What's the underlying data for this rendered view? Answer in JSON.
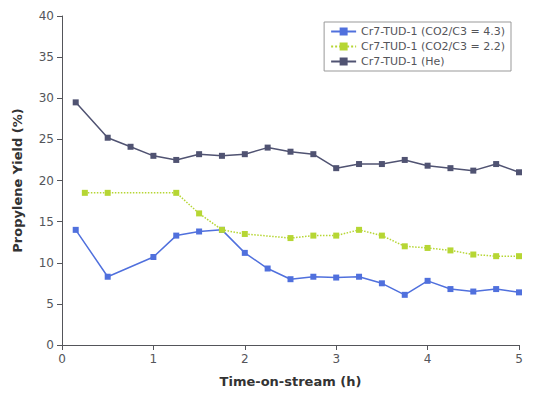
{
  "chart_data": {
    "type": "line",
    "xlabel": "Time-on-stream (h)",
    "ylabel": "Propylene Yield (%)",
    "xlim": [
      0,
      5
    ],
    "ylim": [
      0,
      40
    ],
    "xticks": [
      0,
      1,
      2,
      3,
      4,
      5
    ],
    "yticks": [
      0,
      5,
      10,
      15,
      20,
      25,
      30,
      35,
      40
    ],
    "grid": false,
    "legend": "upper right",
    "series": [
      {
        "name": "Cr7-TUD-1 (CO2/C3 = 4.3)",
        "line_style": "solid",
        "marker": "square",
        "x": [
          0.15,
          0.5,
          1.0,
          1.25,
          1.5,
          1.75,
          2.0,
          2.25,
          2.5,
          2.75,
          3.0,
          3.25,
          3.5,
          3.75,
          4.0,
          4.25,
          4.5,
          4.75,
          5.0
        ],
        "values": [
          14.0,
          8.3,
          10.7,
          13.3,
          13.8,
          14.0,
          11.2,
          9.3,
          8.0,
          8.3,
          8.2,
          8.3,
          7.5,
          6.1,
          7.8,
          6.8,
          6.5,
          6.8,
          6.4
        ]
      },
      {
        "name": "Cr7-TUD-1 (CO2/C3 = 2.2)",
        "line_style": "dotted",
        "marker": "square",
        "x": [
          0.25,
          0.5,
          1.25,
          1.5,
          1.75,
          2.0,
          2.5,
          2.75,
          3.0,
          3.25,
          3.5,
          3.75,
          4.0,
          4.25,
          4.5,
          4.75,
          5.0
        ],
        "values": [
          18.5,
          18.5,
          18.5,
          16.0,
          14.0,
          13.5,
          13.0,
          13.3,
          13.3,
          14.0,
          13.3,
          12.0,
          11.8,
          11.5,
          11.0,
          10.8,
          10.8
        ]
      },
      {
        "name": "Cr7-TUD-1 (He)",
        "line_style": "solid",
        "marker": "square",
        "x": [
          0.15,
          0.5,
          0.75,
          1.0,
          1.25,
          1.5,
          1.75,
          2.0,
          2.25,
          2.5,
          2.75,
          3.0,
          3.25,
          3.5,
          3.75,
          4.0,
          4.25,
          4.5,
          4.75,
          5.0
        ],
        "values": [
          29.5,
          25.2,
          24.1,
          23.0,
          22.5,
          23.2,
          23.0,
          23.2,
          24.0,
          23.5,
          23.2,
          21.5,
          22.0,
          22.0,
          22.5,
          21.8,
          21.5,
          21.2,
          22.0,
          21.0
        ]
      }
    ]
  }
}
